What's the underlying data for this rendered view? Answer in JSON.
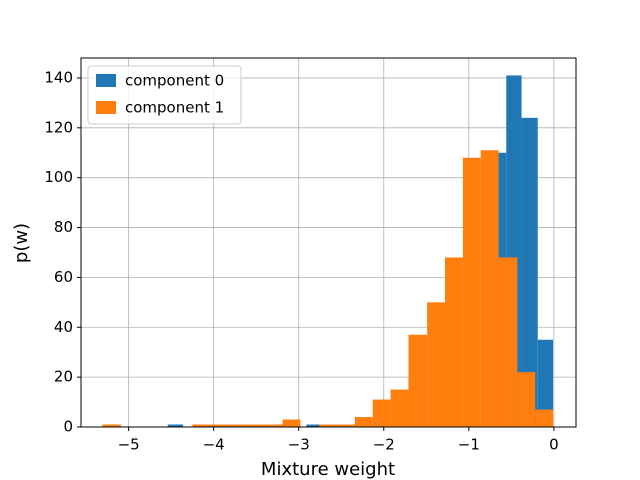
{
  "chart_data": {
    "type": "histogram",
    "xlabel": "Mixture weight",
    "ylabel": "p(w)",
    "xlim": [
      -5.56,
      0.26
    ],
    "ylim": [
      0,
      148
    ],
    "xticks": [
      {
        "value": -5,
        "label": "−5"
      },
      {
        "value": -4,
        "label": "−4"
      },
      {
        "value": -3,
        "label": "−3"
      },
      {
        "value": -2,
        "label": "−2"
      },
      {
        "value": -1,
        "label": "−1"
      },
      0
    ],
    "yticks": [
      0,
      20,
      40,
      60,
      80,
      100,
      120,
      140
    ],
    "grid": true,
    "legend": "upper left",
    "series": [
      {
        "name": "component 0",
        "color": "#1f77b4",
        "bins": [
          -4.54,
          -4.36,
          -4.18,
          -4.0,
          -3.82,
          -3.63,
          -3.45,
          -3.27,
          -3.09,
          -2.91,
          -2.73,
          -2.55,
          -2.37,
          -2.19,
          -2.01,
          -1.82,
          -1.64,
          -1.46,
          -1.28,
          -1.1,
          -0.92,
          -0.74,
          -0.56,
          -0.38,
          -0.19,
          -0.01
        ],
        "values": [
          1,
          0,
          0,
          0,
          0,
          0,
          0,
          0,
          0,
          1,
          0,
          0,
          0,
          0,
          0,
          0,
          0,
          0,
          0,
          0,
          0,
          110,
          141,
          124,
          35
        ]
      },
      {
        "name": "component 1",
        "color": "#ff7f0e",
        "bins": [
          -5.31,
          -5.09,
          -4.88,
          -4.67,
          -4.46,
          -4.25,
          -4.04,
          -3.82,
          -3.61,
          -3.4,
          -3.19,
          -2.98,
          -2.76,
          -2.55,
          -2.34,
          -2.13,
          -1.92,
          -1.71,
          -1.49,
          -1.28,
          -1.07,
          -0.86,
          -0.65,
          -0.43,
          -0.22,
          -0.01
        ],
        "values": [
          1,
          0,
          0,
          0,
          0,
          1,
          1,
          1,
          1,
          1,
          3,
          0,
          1,
          1,
          4,
          11,
          15,
          37,
          50,
          68,
          108,
          111,
          68,
          22,
          7
        ]
      }
    ]
  }
}
